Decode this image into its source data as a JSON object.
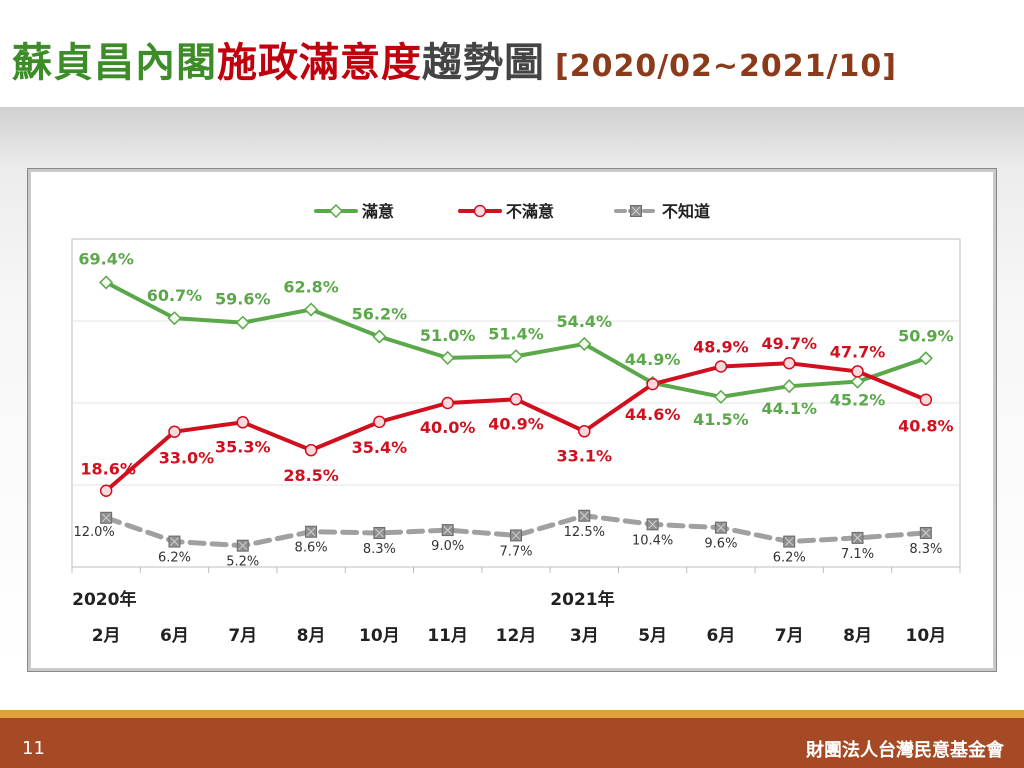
{
  "slide": {
    "title_parts": [
      {
        "text": "蘇貞昌內閣",
        "color": "#3c8c28"
      },
      {
        "text": "施政滿意度",
        "color": "#c0000d"
      },
      {
        "text": "趨勢圖",
        "color": "#444444"
      }
    ],
    "date_range": "[2020/02~2021/10]",
    "date_range_color": "#8b3a1a",
    "page_number": "11",
    "organization": "財團法人台灣民意基金會"
  },
  "chart_data": {
    "type": "line",
    "categories": [
      "2月",
      "6月",
      "7月",
      "8月",
      "10月",
      "11月",
      "12月",
      "3月",
      "5月",
      "6月",
      "7月",
      "8月",
      "10月"
    ],
    "year_labels": [
      {
        "index": 0,
        "text": "2020年"
      },
      {
        "index": 7,
        "text": "2021年"
      }
    ],
    "series": [
      {
        "name": "滿意",
        "color": "#5aa84a",
        "marker": "diamond",
        "dash": false,
        "values": [
          69.4,
          60.7,
          59.6,
          62.8,
          56.2,
          51.0,
          51.4,
          54.4,
          44.9,
          41.5,
          44.1,
          45.2,
          50.9
        ],
        "labels": [
          "69.4%",
          "60.7%",
          "59.6%",
          "62.8%",
          "56.2%",
          "51.0%",
          "51.4%",
          "54.4%",
          "44.9%",
          "41.5%",
          "44.1%",
          "45.2%",
          "50.9%"
        ]
      },
      {
        "name": "不滿意",
        "color": "#d0101e",
        "marker": "circle",
        "dash": false,
        "values": [
          18.6,
          33.0,
          35.3,
          28.5,
          35.4,
          40.0,
          40.9,
          33.1,
          44.6,
          48.9,
          49.7,
          47.7,
          40.8
        ],
        "labels": [
          "18.6%",
          "33.0%",
          "35.3%",
          "28.5%",
          "35.4%",
          "40.0%",
          "40.9%",
          "33.1%",
          "44.6%",
          "48.9%",
          "49.7%",
          "47.7%",
          "40.8%"
        ]
      },
      {
        "name": "不知道",
        "color": "#a0a0a0",
        "marker": "square-x",
        "dash": true,
        "values": [
          12.0,
          6.2,
          5.2,
          8.6,
          8.3,
          9.0,
          7.7,
          12.5,
          10.4,
          9.6,
          6.2,
          7.1,
          8.3
        ],
        "labels": [
          "12.0%",
          "6.2%",
          "5.2%",
          "8.6%",
          "8.3%",
          "9.0%",
          "7.7%",
          "12.5%",
          "10.4%",
          "9.6%",
          "6.2%",
          "7.1%",
          "8.3%"
        ]
      }
    ],
    "ylim": [
      0,
      80
    ],
    "grid": true,
    "legend_position": "top-center"
  }
}
